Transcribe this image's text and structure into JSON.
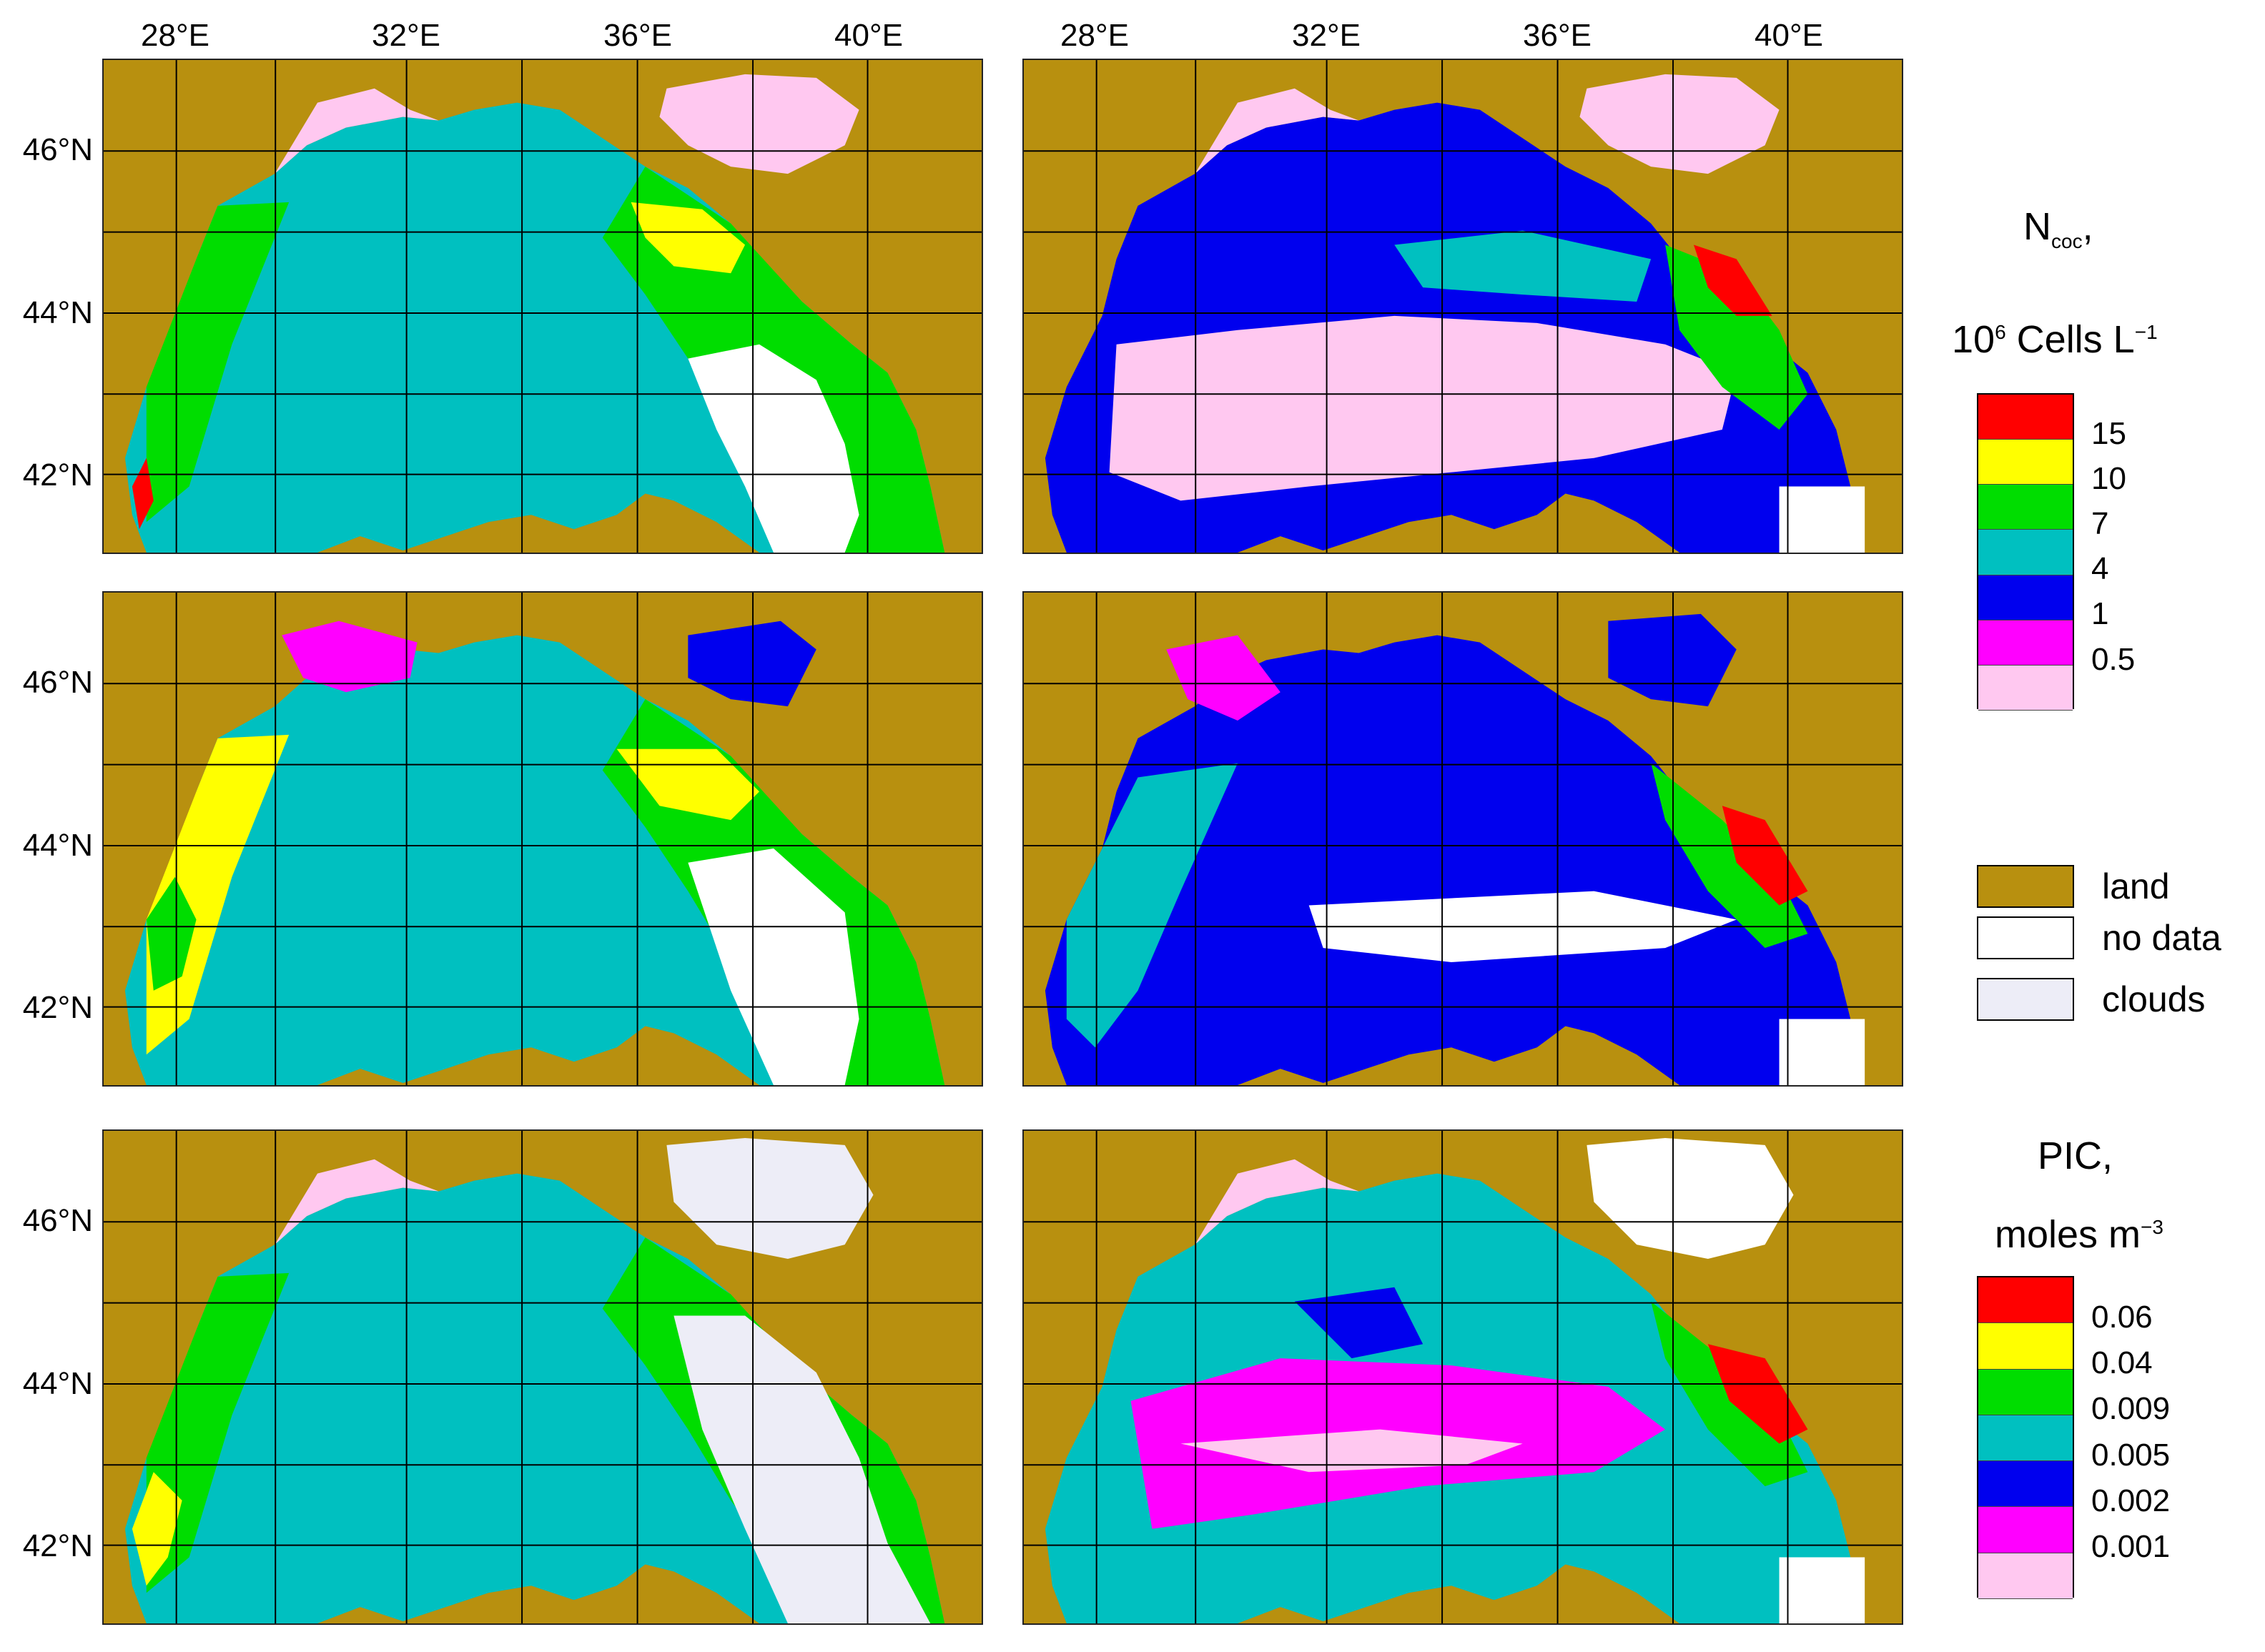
{
  "axes": {
    "lon_labels": [
      "28°E",
      "32°E",
      "36°E",
      "40°E"
    ],
    "lat_labels": [
      "46°N",
      "44°N",
      "42°N"
    ]
  },
  "legend_ncoc": {
    "title": "N",
    "title_sub": "coc",
    "title_end": ",",
    "units_pre": "10",
    "units_sup": "6",
    "units_mid": " Cells L",
    "units_sup2": "−1",
    "levels": [
      {
        "label": "15",
        "color": "#ff0000"
      },
      {
        "label": "10",
        "color": "#ffff00"
      },
      {
        "label": "7",
        "color": "#00dd00"
      },
      {
        "label": "4",
        "color": "#00c0c0"
      },
      {
        "label": "1",
        "color": "#0000ee"
      },
      {
        "label": "0.5",
        "color": "#ff00ff"
      },
      {
        "label": "",
        "color": "#ffc8f0"
      }
    ]
  },
  "legend_categories": [
    {
      "label": "land",
      "color": "#b8900f"
    },
    {
      "label": "no data",
      "color": "#ffffff"
    },
    {
      "label": "clouds",
      "color": "#ededf7"
    }
  ],
  "legend_pic": {
    "title": "PIC,",
    "units_pre": "moles m",
    "units_sup": "−3",
    "levels": [
      {
        "label": "0.06",
        "color": "#ff0000"
      },
      {
        "label": "0.04",
        "color": "#ffff00"
      },
      {
        "label": "0.009",
        "color": "#00dd00"
      },
      {
        "label": "0.005",
        "color": "#00c0c0"
      },
      {
        "label": "0.002",
        "color": "#0000ee"
      },
      {
        "label": "0.001",
        "color": "#ff00ff"
      },
      {
        "label": "",
        "color": "#ffc8f0"
      }
    ]
  },
  "colors": {
    "land": "#b8900f",
    "no_data": "#ffffff",
    "clouds": "#ededf7",
    "red": "#ff0000",
    "yellow": "#ffff00",
    "green": "#00dd00",
    "cyan": "#00c0c0",
    "blue": "#0000ee",
    "magenta": "#ff00ff",
    "pink": "#ffc8f0"
  }
}
